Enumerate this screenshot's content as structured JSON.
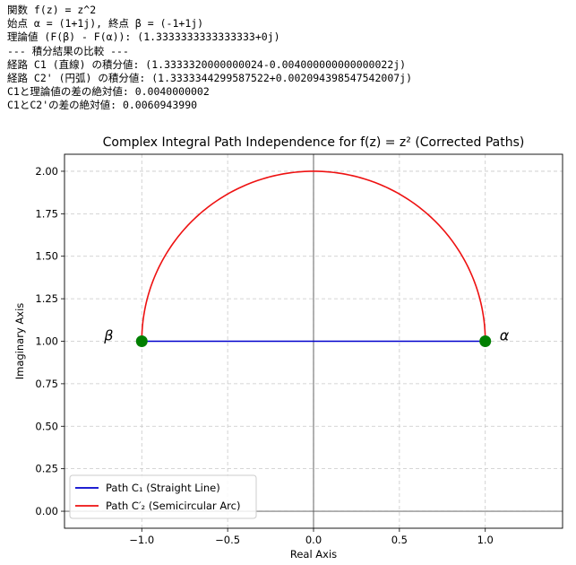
{
  "console": {
    "lines": [
      "関数 f(z) = z^2",
      "始点 α = (1+1j), 終点 β = (-1+1j)",
      "理論値 (F(β) - F(α)): (1.3333333333333333+0j)",
      "--- 積分結果の比較 ---",
      "経路 C1 (直線) の積分値: (1.3333320000000024-0.004000000000000022j)",
      "経路 C2' (円弧) の積分値: (1.3333344299587522+0.002094398547542007j)",
      "C1と理論値の差の絶対値: 0.0040000002",
      "C1とC2'の差の絶対値: 0.0060943990"
    ]
  },
  "chart_data": {
    "type": "line",
    "title": "Complex Integral Path Independence for f(z) = z² (Corrected Paths)",
    "xlabel": "Real Axis",
    "ylabel": "Imaginary Axis",
    "xlim": [
      -1.45,
      1.45
    ],
    "ylim": [
      -0.1,
      2.1
    ],
    "xticks": [
      -1.0,
      -0.5,
      0.0,
      0.5,
      1.0
    ],
    "yticks": [
      0.0,
      0.25,
      0.5,
      0.75,
      1.0,
      1.25,
      1.5,
      1.75,
      2.0
    ],
    "xtick_labels": [
      "−1.0",
      "−0.5",
      "0.0",
      "0.5",
      "1.0"
    ],
    "ytick_labels": [
      "0.00",
      "0.25",
      "0.50",
      "0.75",
      "1.00",
      "1.25",
      "1.50",
      "1.75",
      "2.00"
    ],
    "grid": true,
    "legend_position": "lower-left",
    "series": [
      {
        "name": "Path C₁ (Straight Line)",
        "color": "#0000cc",
        "shape": "line",
        "from": [
          1.0,
          1.0
        ],
        "to": [
          -1.0,
          1.0
        ]
      },
      {
        "name": "Path C′₂ (Semicircular Arc)",
        "color": "#ee1111",
        "shape": "semicircle",
        "center": [
          0.0,
          1.0
        ],
        "radius": 1.0
      }
    ],
    "points": [
      {
        "label": "α",
        "x": 1.0,
        "y": 1.0,
        "color": "#007f00"
      },
      {
        "label": "β",
        "x": -1.0,
        "y": 1.0,
        "color": "#007f00"
      }
    ]
  }
}
